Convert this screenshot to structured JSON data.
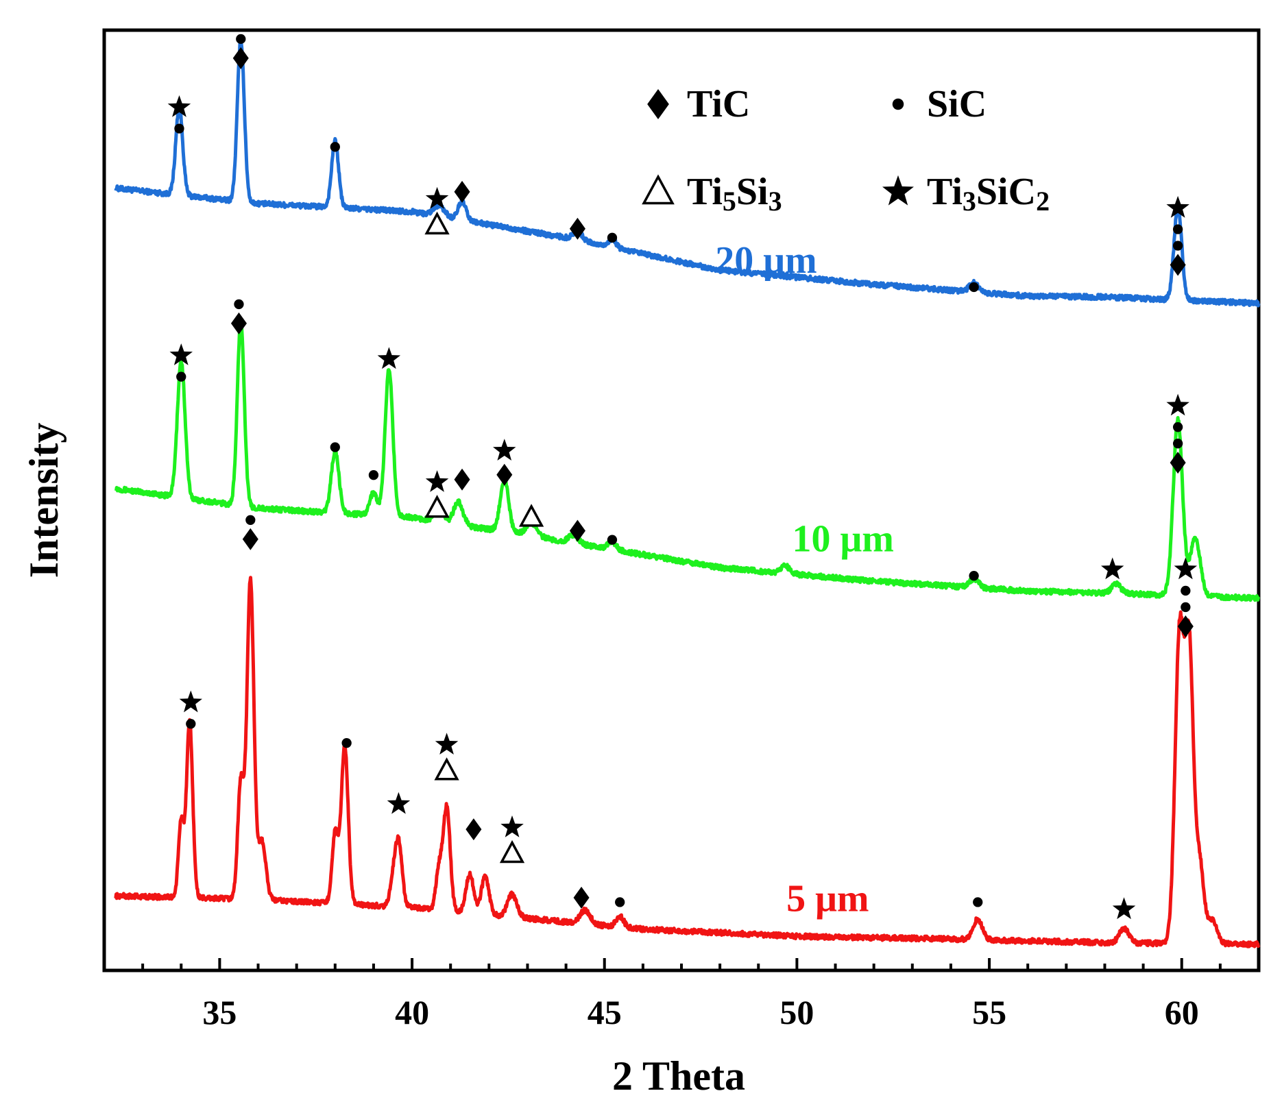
{
  "chart_data": {
    "type": "line",
    "title": "",
    "xlabel": "2 Theta",
    "ylabel": "Intensity",
    "xlim": [
      32,
      62
    ],
    "ylim": [
      0,
      100
    ],
    "xticks": [
      35,
      40,
      45,
      50,
      55,
      60
    ],
    "xtick_labels": [
      "35",
      "40",
      "45",
      "50",
      "55",
      "60"
    ],
    "legend": {
      "placement": "top-right",
      "entries": [
        {
          "symbol": "diamond",
          "label": "TiC"
        },
        {
          "symbol": "circle",
          "label": "SiC"
        },
        {
          "symbol": "triangle",
          "label": "Ti",
          "sub1": "5",
          "mid": "Si",
          "sub2": "3"
        },
        {
          "symbol": "star",
          "label": "Ti",
          "sub1": "3",
          "mid": "SiC",
          "sub2": "2"
        }
      ]
    },
    "series": [
      {
        "name": "20 μm",
        "color": "#1f6fd6",
        "label_pos": [
          49.2,
          75
        ],
        "baseline": [
          [
            32.3,
            84.4
          ],
          [
            36,
            82.7
          ],
          [
            40,
            81.8
          ],
          [
            44,
            78.9
          ],
          [
            48,
            75.3
          ],
          [
            52,
            73.7
          ],
          [
            56,
            72.4
          ],
          [
            58,
            72.3
          ],
          [
            62,
            71.6
          ]
        ],
        "peaks": [
          {
            "x": 33.95,
            "h": 9.8,
            "w": 0.09
          },
          {
            "x": 35.55,
            "h": 18.0,
            "w": 0.09
          },
          {
            "x": 38.0,
            "h": 7.4,
            "w": 0.09
          },
          {
            "x": 40.7,
            "h": 1.2,
            "w": 0.14
          },
          {
            "x": 41.3,
            "h": 2.1,
            "w": 0.1
          },
          {
            "x": 44.3,
            "h": 1.0,
            "w": 0.12
          },
          {
            "x": 45.2,
            "h": 0.9,
            "w": 0.1
          },
          {
            "x": 54.6,
            "h": 1.0,
            "w": 0.12
          },
          {
            "x": 59.9,
            "h": 10.4,
            "w": 0.1
          }
        ],
        "annotations": [
          {
            "x": 33.95,
            "y": 93.4,
            "symbols": [
              "star",
              "circle"
            ]
          },
          {
            "x": 35.55,
            "y": 101.0,
            "symbols": [
              "circle",
              "diamond"
            ]
          },
          {
            "x": 38.0,
            "y": 89.0,
            "symbols": [
              "circle"
            ]
          },
          {
            "x": 40.65,
            "y": 83.2,
            "symbols": [
              "star",
              "triangle"
            ]
          },
          {
            "x": 41.3,
            "y": 84.0,
            "symbols": [
              "diamond"
            ]
          },
          {
            "x": 44.3,
            "y": 79.9,
            "symbols": [
              "diamond"
            ]
          },
          {
            "x": 45.2,
            "y": 78.9,
            "symbols": [
              "circle"
            ]
          },
          {
            "x": 54.6,
            "y": 73.4,
            "symbols": [
              "circle"
            ]
          },
          {
            "x": 59.9,
            "y": 82.2,
            "symbols": [
              "star",
              "circle",
              "circle",
              "diamond"
            ]
          }
        ]
      },
      {
        "name": "10 μm",
        "color": "#1ef01e",
        "label_pos": [
          51.2,
          44
        ],
        "baseline": [
          [
            32.3,
            51.0
          ],
          [
            36,
            48.8
          ],
          [
            40,
            47.8
          ],
          [
            44,
            45.1
          ],
          [
            48,
            42.2
          ],
          [
            52,
            40.7
          ],
          [
            56,
            39.6
          ],
          [
            58,
            39.4
          ],
          [
            62,
            38.8
          ]
        ],
        "peaks": [
          {
            "x": 34.0,
            "h": 15.2,
            "w": 0.1
          },
          {
            "x": 35.55,
            "h": 20.6,
            "w": 0.09
          },
          {
            "x": 38.0,
            "h": 6.8,
            "w": 0.1
          },
          {
            "x": 39.0,
            "h": 2.5,
            "w": 0.1
          },
          {
            "x": 39.4,
            "h": 16.3,
            "w": 0.1
          },
          {
            "x": 40.7,
            "h": 1.3,
            "w": 0.12
          },
          {
            "x": 41.2,
            "h": 2.5,
            "w": 0.12
          },
          {
            "x": 42.4,
            "h": 5.8,
            "w": 0.11
          },
          {
            "x": 43.1,
            "h": 1.5,
            "w": 0.14
          },
          {
            "x": 44.2,
            "h": 0.9,
            "w": 0.12
          },
          {
            "x": 45.2,
            "h": 0.9,
            "w": 0.1
          },
          {
            "x": 49.7,
            "h": 0.8,
            "w": 0.12
          },
          {
            "x": 54.6,
            "h": 1.0,
            "w": 0.12
          },
          {
            "x": 58.3,
            "h": 1.0,
            "w": 0.12
          },
          {
            "x": 59.9,
            "h": 19.5,
            "w": 0.12
          },
          {
            "x": 60.35,
            "h": 6.5,
            "w": 0.13
          }
        ],
        "annotations": [
          {
            "x": 34.0,
            "y": 65.8,
            "symbols": [
              "star",
              "circle"
            ]
          },
          {
            "x": 35.5,
            "y": 71.5,
            "symbols": [
              "circle",
              "diamond"
            ]
          },
          {
            "x": 38.0,
            "y": 55.6,
            "symbols": [
              "circle"
            ]
          },
          {
            "x": 39.0,
            "y": 52.5,
            "symbols": [
              "circle"
            ]
          },
          {
            "x": 39.4,
            "y": 65.4,
            "symbols": [
              "star"
            ]
          },
          {
            "x": 40.65,
            "y": 51.7,
            "symbols": [
              "star",
              "triangle"
            ]
          },
          {
            "x": 41.3,
            "y": 52.0,
            "symbols": [
              "diamond"
            ]
          },
          {
            "x": 42.4,
            "y": 55.2,
            "symbols": [
              "star",
              "diamond"
            ]
          },
          {
            "x": 43.1,
            "y": 47.8,
            "symbols": [
              "triangle"
            ]
          },
          {
            "x": 44.3,
            "y": 46.3,
            "symbols": [
              "diamond"
            ]
          },
          {
            "x": 45.2,
            "y": 45.3,
            "symbols": [
              "circle"
            ]
          },
          {
            "x": 54.6,
            "y": 41.3,
            "symbols": [
              "circle"
            ]
          },
          {
            "x": 58.2,
            "y": 42.0,
            "symbols": [
              "star"
            ]
          },
          {
            "x": 59.9,
            "y": 60.2,
            "symbols": [
              "star",
              "circle",
              "circle",
              "diamond"
            ]
          }
        ]
      },
      {
        "name": "5 μm",
        "color": "#f01414",
        "label_pos": [
          50.8,
          4
        ],
        "baseline": [
          [
            32.3,
            5.7
          ],
          [
            36,
            5.3
          ],
          [
            40,
            4.4
          ],
          [
            44,
            2.8
          ],
          [
            46,
            2.0
          ],
          [
            50,
            1.2
          ],
          [
            54,
            0.9
          ],
          [
            58,
            0.5
          ],
          [
            62,
            0.3
          ]
        ],
        "peaks": [
          {
            "x": 34.0,
            "h": 8.5,
            "w": 0.07
          },
          {
            "x": 34.22,
            "h": 19.5,
            "w": 0.08
          },
          {
            "x": 35.55,
            "h": 13.0,
            "w": 0.08
          },
          {
            "x": 35.8,
            "h": 35.5,
            "w": 0.09
          },
          {
            "x": 36.1,
            "h": 6.5,
            "w": 0.1
          },
          {
            "x": 38.0,
            "h": 7.8,
            "w": 0.08
          },
          {
            "x": 38.25,
            "h": 17.5,
            "w": 0.09
          },
          {
            "x": 39.5,
            "h": 2.5,
            "w": 0.08
          },
          {
            "x": 39.65,
            "h": 7.2,
            "w": 0.09
          },
          {
            "x": 40.7,
            "h": 4.5,
            "w": 0.08
          },
          {
            "x": 40.9,
            "h": 11.5,
            "w": 0.09
          },
          {
            "x": 41.5,
            "h": 4.3,
            "w": 0.1
          },
          {
            "x": 41.9,
            "h": 4.2,
            "w": 0.1
          },
          {
            "x": 42.6,
            "h": 2.5,
            "w": 0.12
          },
          {
            "x": 44.5,
            "h": 1.5,
            "w": 0.13
          },
          {
            "x": 45.4,
            "h": 1.2,
            "w": 0.1
          },
          {
            "x": 54.7,
            "h": 2.3,
            "w": 0.12
          },
          {
            "x": 58.5,
            "h": 1.6,
            "w": 0.12
          },
          {
            "x": 59.95,
            "h": 35.0,
            "w": 0.12
          },
          {
            "x": 60.2,
            "h": 30.0,
            "w": 0.1
          },
          {
            "x": 60.45,
            "h": 9.5,
            "w": 0.12
          },
          {
            "x": 60.8,
            "h": 2.5,
            "w": 0.12
          }
        ],
        "annotations": [
          {
            "x": 34.25,
            "y": 27.2,
            "symbols": [
              "star",
              "circle"
            ]
          },
          {
            "x": 35.8,
            "y": 47.5,
            "symbols": [
              "circle",
              "diamond"
            ]
          },
          {
            "x": 38.3,
            "y": 22.7,
            "symbols": [
              "circle"
            ]
          },
          {
            "x": 39.65,
            "y": 15.9,
            "symbols": [
              "star"
            ]
          },
          {
            "x": 40.9,
            "y": 22.5,
            "symbols": [
              "star",
              "triangle"
            ]
          },
          {
            "x": 41.6,
            "y": 13.1,
            "symbols": [
              "diamond"
            ]
          },
          {
            "x": 42.6,
            "y": 13.3,
            "symbols": [
              "star",
              "triangle"
            ]
          },
          {
            "x": 44.4,
            "y": 5.5,
            "symbols": [
              "diamond"
            ]
          },
          {
            "x": 45.4,
            "y": 5.0,
            "symbols": [
              "circle"
            ]
          },
          {
            "x": 54.7,
            "y": 5.0,
            "symbols": [
              "circle"
            ]
          },
          {
            "x": 58.5,
            "y": 4.2,
            "symbols": [
              "star"
            ]
          },
          {
            "x": 60.1,
            "y": 42.0,
            "symbols": [
              "star",
              "circle",
              "circle",
              "diamond"
            ]
          }
        ]
      }
    ]
  }
}
